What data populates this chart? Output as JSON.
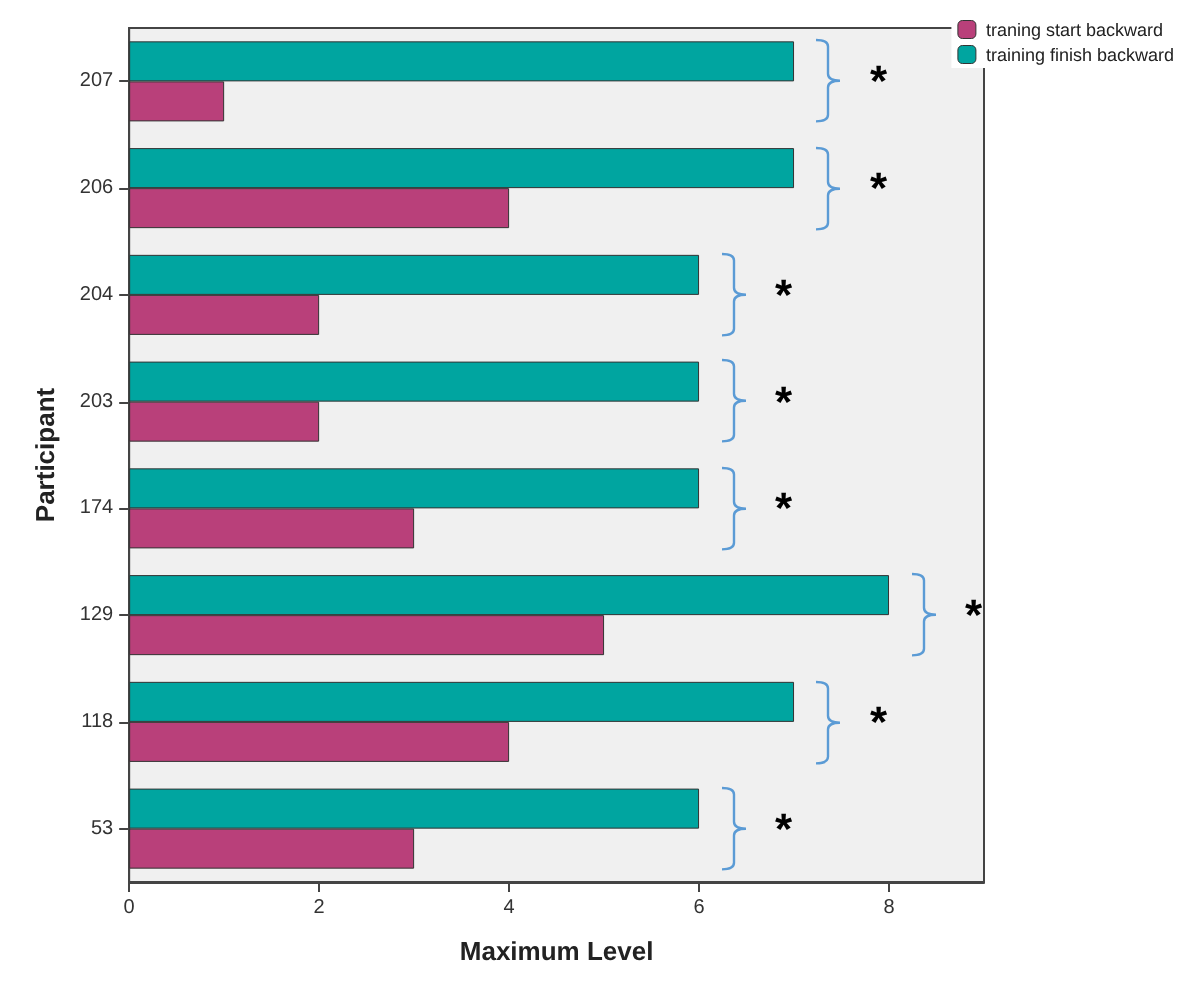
{
  "chart_data": {
    "type": "bar",
    "orientation": "horizontal",
    "xlabel": "Maximum Level",
    "ylabel": "Participant",
    "categories": [
      "207",
      "206",
      "204",
      "203",
      "174",
      "129",
      "118",
      "53"
    ],
    "series": [
      {
        "name": "traning start backward",
        "color": "#b9407a",
        "values": [
          1,
          4,
          2,
          2,
          3,
          5,
          4,
          3
        ]
      },
      {
        "name": "training finish backward",
        "color": "#00a5a0",
        "values": [
          7,
          7,
          6,
          6,
          6,
          8,
          7,
          6
        ]
      }
    ],
    "xlim": [
      0,
      9
    ],
    "xticks": [
      0,
      2,
      4,
      6,
      8
    ],
    "grid": false,
    "legend": "top right",
    "annotations": [
      {
        "text": "*",
        "x": 7,
        "y": "207"
      },
      {
        "text": "*",
        "x": 7,
        "y": "206"
      },
      {
        "text": "*",
        "x": 6,
        "y": "204"
      },
      {
        "text": "*",
        "x": 6,
        "y": "203"
      },
      {
        "text": "*",
        "x": 6,
        "y": "174"
      },
      {
        "text": "*",
        "x": 8,
        "y": "129"
      },
      {
        "text": "*",
        "x": 7,
        "y": "118"
      },
      {
        "text": "*",
        "x": 6,
        "y": "53"
      }
    ]
  }
}
